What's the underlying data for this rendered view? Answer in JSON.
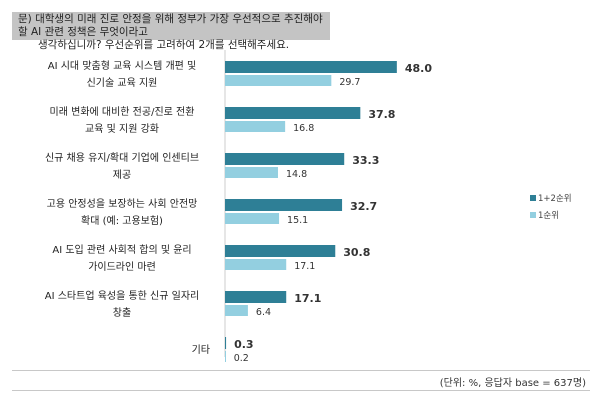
{
  "question": {
    "line1": "문) 대학생의 미래 진로 안정을 위해 정부가 가장 우선적으로 추진해야 할 AI 관련 정책은 무엇이라고",
    "line2": "생각하십니까? 우선순위를 고려하여 2개를 선택해주세요."
  },
  "note": "(단위: %, 응답자 base = 637명)",
  "chart_data": {
    "type": "bar",
    "orientation": "horizontal",
    "categories": [
      [
        "AI 시대 맞춤형 교육 시스템 개편 및",
        "신기술 교육 지원"
      ],
      [
        "미래 변화에 대비한 전공/진로 전환",
        "교육 및 지원 강화"
      ],
      [
        "신규 채용 유지/확대 기업에 인센티브",
        "제공"
      ],
      [
        "고용 안정성을 보장하는 사회 안전망",
        "확대 (예: 고용보험)"
      ],
      [
        "AI 도입 관련 사회적 합의 및 윤리",
        "가이드라인 마련"
      ],
      [
        "AI 스타트업 육성을 통한 신규 일자리",
        "창출"
      ],
      [
        "기타"
      ]
    ],
    "series": [
      {
        "name": "1+2순위",
        "color": "#2e7f96",
        "values": [
          48.0,
          37.8,
          33.3,
          32.7,
          30.8,
          17.1,
          0.3
        ]
      },
      {
        "name": "1순위",
        "color": "#93cfe0",
        "values": [
          29.7,
          16.8,
          14.8,
          15.1,
          17.1,
          6.4,
          0.2
        ]
      }
    ],
    "legend": "right",
    "grid": false
  }
}
